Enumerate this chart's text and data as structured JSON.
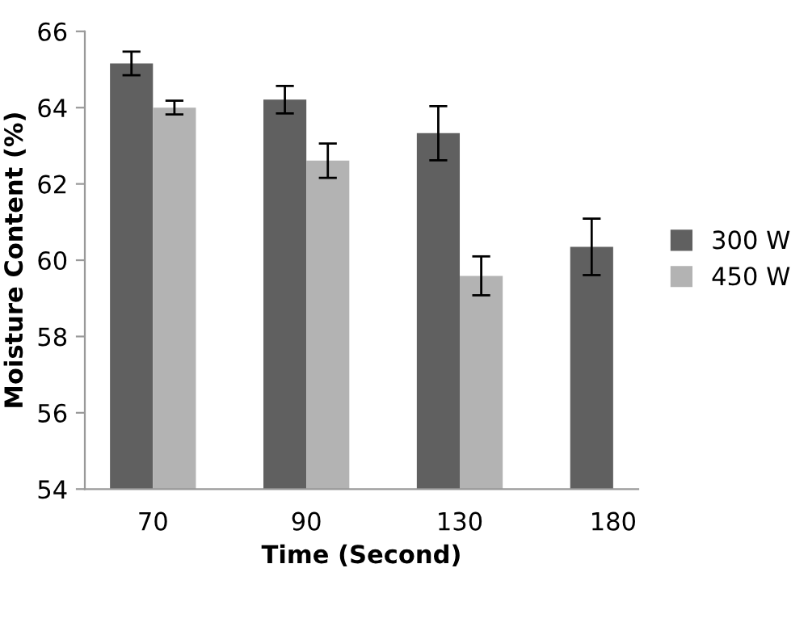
{
  "chart_data": {
    "type": "bar",
    "xlabel": "Time (Second)",
    "ylabel": "Moisture Content (%)",
    "categories": [
      "70",
      "90",
      "130",
      "180"
    ],
    "series": [
      {
        "name": "300 W",
        "color": "#606060",
        "values": [
          65.16,
          64.21,
          63.33,
          60.35
        ],
        "errors": [
          0.31,
          0.36,
          0.71,
          0.74
        ]
      },
      {
        "name": "450 W",
        "color": "#b3b3b3",
        "values": [
          64.0,
          62.61,
          59.59,
          null
        ],
        "errors": [
          0.18,
          0.45,
          0.51,
          null
        ]
      }
    ],
    "ylim": [
      54,
      66
    ],
    "yticks": [
      54,
      56,
      58,
      60,
      62,
      64,
      66
    ],
    "grid": false,
    "legend": "right"
  }
}
